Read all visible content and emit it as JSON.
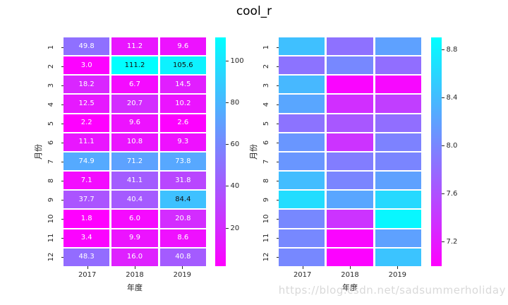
{
  "title": "cool_r",
  "watermark": "https://blog.csdn.net/sadsummerholiday",
  "colors": {
    "colormap_low": "#ff00ff",
    "colormap_high": "#00ffff",
    "tick_text": "#262626",
    "annotation_light": "#ffffff",
    "annotation_dark": "#111111",
    "watermark_text": "#d9d9d9",
    "background": "#ffffff"
  },
  "chart_data": [
    {
      "type": "heatmap",
      "colormap": "cool_r",
      "annotated": true,
      "x": [
        "2017",
        "2018",
        "2019"
      ],
      "y": [
        "1",
        "2",
        "3",
        "4",
        "5",
        "6",
        "7",
        "8",
        "9",
        "10",
        "11",
        "12"
      ],
      "xlabel": "年度",
      "ylabel": "月份",
      "vmin": 1.8,
      "vmax": 111.2,
      "values": [
        [
          49.8,
          11.2,
          9.6
        ],
        [
          3.0,
          111.2,
          105.6
        ],
        [
          18.2,
          6.7,
          14.5
        ],
        [
          12.5,
          20.7,
          10.2
        ],
        [
          2.2,
          9.6,
          2.6
        ],
        [
          11.1,
          10.8,
          9.3
        ],
        [
          74.9,
          71.2,
          73.8
        ],
        [
          7.1,
          41.1,
          31.8
        ],
        [
          37.7,
          40.4,
          84.4
        ],
        [
          1.8,
          6.0,
          20.8
        ],
        [
          3.4,
          9.9,
          8.6
        ],
        [
          48.3,
          16.0,
          40.8
        ]
      ],
      "colorbar_ticks": [
        {
          "value": 20,
          "label": "20"
        },
        {
          "value": 40,
          "label": "40"
        },
        {
          "value": 60,
          "label": "60"
        },
        {
          "value": 80,
          "label": "80"
        },
        {
          "value": 100,
          "label": "100"
        }
      ]
    },
    {
      "type": "heatmap",
      "colormap": "cool_r",
      "annotated": false,
      "x": [
        "2017",
        "2018",
        "2019"
      ],
      "y": [
        "1",
        "2",
        "3",
        "4",
        "5",
        "6",
        "7",
        "8",
        "9",
        "10",
        "11",
        "12"
      ],
      "xlabel": "年度",
      "ylabel": "月份",
      "vmin": 7.0,
      "vmax": 8.9,
      "values": [
        [
          8.43,
          7.84,
          8.2
        ],
        [
          7.86,
          8.01,
          7.82
        ],
        [
          8.37,
          7.04,
          7.06
        ],
        [
          8.24,
          7.34,
          7.46
        ],
        [
          7.86,
          7.65,
          7.82
        ],
        [
          8.12,
          7.38,
          7.97
        ],
        [
          8.12,
          7.93,
          7.99
        ],
        [
          8.41,
          7.99,
          8.2
        ],
        [
          8.65,
          8.24,
          8.62
        ],
        [
          8.01,
          7.38,
          8.84
        ],
        [
          8.01,
          7.04,
          8.2
        ],
        [
          8.01,
          7.02,
          8.46
        ]
      ],
      "colorbar_ticks": [
        {
          "value": 7.2,
          "label": "7.2"
        },
        {
          "value": 7.6,
          "label": "7.6"
        },
        {
          "value": 8.0,
          "label": "8.0"
        },
        {
          "value": 8.4,
          "label": "8.4"
        },
        {
          "value": 8.8,
          "label": "8.8"
        }
      ]
    }
  ]
}
